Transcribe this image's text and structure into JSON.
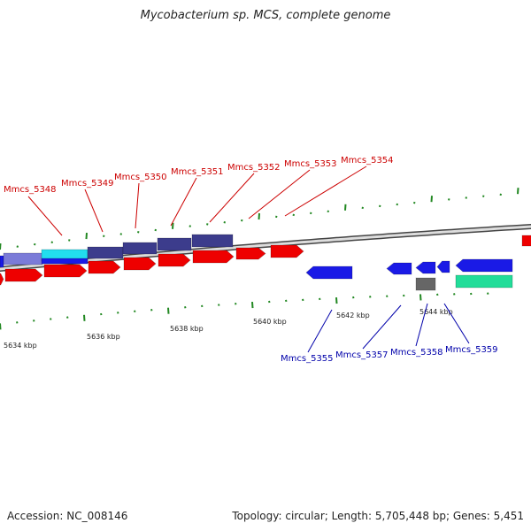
{
  "title": "Mycobacterium sp. MCS, complete genome",
  "footer": {
    "accession": "Accession: NC_008146",
    "topology": "Topology: circular; Length: 5,705,448 bp; Genes: 5,451"
  },
  "colors": {
    "forward_label": "#cc0000",
    "reverse_label": "#0000aa",
    "tick": "#228822",
    "backbone": "#888888",
    "cds_red": "#ee0000",
    "cds_blue": "#1a1ae6",
    "cds_navy": "#3c3c8c",
    "cds_lavender": "#7b7bd8",
    "cds_cyan": "#22ddee",
    "cds_grey": "#666666",
    "cds_green": "#22dd99"
  },
  "scale_labels": [
    "5634 kbp",
    "5636 kbp",
    "5638 kbp",
    "5640 kbp",
    "5642 kbp",
    "5644 kbp"
  ],
  "upper_gene_labels": [
    "Mmcs_5348",
    "Mmcs_5349",
    "Mmcs_5350",
    "Mmcs_5351",
    "Mmcs_5352",
    "Mmcs_5353",
    "Mmcs_5354"
  ],
  "lower_gene_labels": [
    "Mmcs_5355",
    "Mmcs_5357",
    "Mmcs_5358",
    "Mmcs_5359"
  ]
}
